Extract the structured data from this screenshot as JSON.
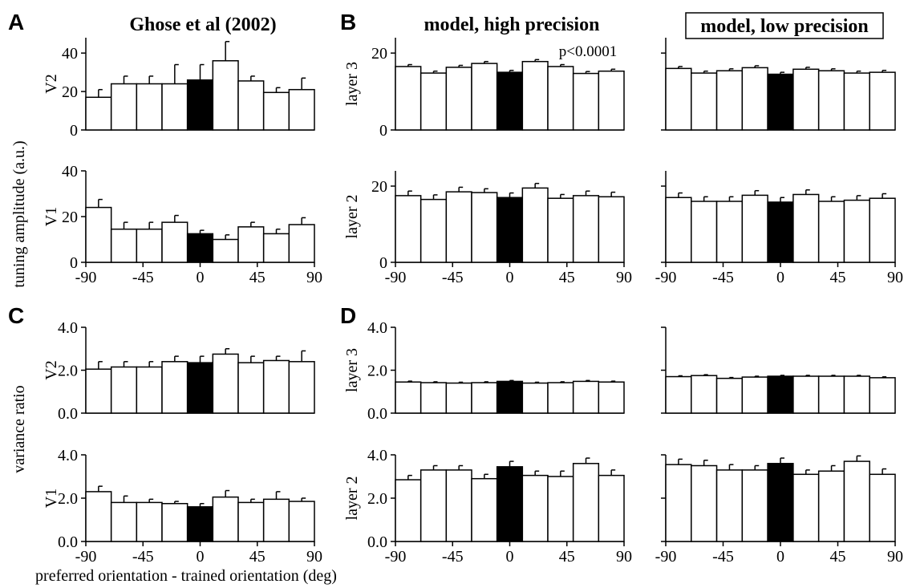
{
  "figure": {
    "panel_letters": [
      "A",
      "B",
      "C",
      "D"
    ],
    "column_titles": [
      "Ghose et al (2002)",
      "model, high precision",
      "model, low precision"
    ],
    "ylabel_top": "tuning amplitude (a.u.)",
    "ylabel_bottom": "variance ratio",
    "xlabel": "preferred orientation - trained orientation (deg)",
    "annotation": "p<0.0001"
  },
  "chart_data": [
    {
      "type": "bar",
      "id": "A-V2",
      "panel": "A",
      "row_label": "V2",
      "x": [
        -80,
        -60,
        -40,
        -20,
        0,
        20,
        40,
        60,
        80
      ],
      "values": [
        17,
        24,
        24,
        24,
        26,
        36,
        25.5,
        19.5,
        21
      ],
      "errors": [
        4,
        4,
        4,
        10,
        8,
        10,
        2.5,
        2.5,
        6
      ],
      "highlight_index": 4,
      "ylim": [
        0,
        48
      ],
      "yticks": [
        0,
        20,
        40
      ],
      "ytick_labels": [
        "0",
        "20",
        "40"
      ],
      "xlim": [
        -90,
        90
      ],
      "xticks": [],
      "xtick_labels": []
    },
    {
      "type": "bar",
      "id": "A-V1",
      "panel": "A",
      "row_label": "V1",
      "x": [
        -80,
        -60,
        -40,
        -20,
        0,
        20,
        40,
        60,
        80
      ],
      "values": [
        24,
        14.5,
        14.5,
        17.5,
        12.5,
        10,
        15.5,
        12.5,
        16.5
      ],
      "errors": [
        3.5,
        3,
        3,
        3,
        1.5,
        2,
        2,
        2,
        3
      ],
      "highlight_index": 4,
      "ylim": [
        0,
        40
      ],
      "yticks": [
        0,
        20,
        40
      ],
      "ytick_labels": [
        "0",
        "20",
        "40"
      ],
      "xlim": [
        -90,
        90
      ],
      "xticks": [
        -90,
        -45,
        0,
        45,
        90
      ],
      "xtick_labels": [
        "-90",
        "-45",
        "0",
        "45",
        "90"
      ]
    },
    {
      "type": "bar",
      "id": "B-high-layer3",
      "panel": "B",
      "row_label": "layer 3",
      "x": [
        -80,
        -60,
        -40,
        -20,
        0,
        20,
        40,
        60,
        80
      ],
      "values": [
        16.5,
        14.8,
        16.3,
        17.3,
        15,
        17.8,
        16.5,
        14.7,
        15.3
      ],
      "errors": [
        0.5,
        0.5,
        0.5,
        0.5,
        0.5,
        0.5,
        0.5,
        0.5,
        0.5
      ],
      "highlight_index": 4,
      "ylim": [
        0,
        24
      ],
      "yticks": [
        0,
        20
      ],
      "ytick_labels": [
        "0",
        "20"
      ],
      "xlim": [
        -90,
        90
      ],
      "xticks": [],
      "xtick_labels": []
    },
    {
      "type": "bar",
      "id": "B-high-layer2",
      "panel": "B",
      "row_label": "layer 2",
      "x": [
        -80,
        -60,
        -40,
        -20,
        0,
        20,
        40,
        60,
        80
      ],
      "values": [
        17.5,
        16.5,
        18.5,
        18.3,
        17,
        19.5,
        16.8,
        17.5,
        17.2
      ],
      "errors": [
        1.2,
        1.2,
        1.2,
        1,
        1.2,
        1.2,
        1,
        1.2,
        1.2
      ],
      "highlight_index": 4,
      "ylim": [
        0,
        24
      ],
      "yticks": [
        0,
        20
      ],
      "ytick_labels": [
        "0",
        "20"
      ],
      "xlim": [
        -90,
        90
      ],
      "xticks": [
        -90,
        -45,
        0,
        45,
        90
      ],
      "xtick_labels": [
        "-90",
        "-45",
        "0",
        "45",
        "90"
      ]
    },
    {
      "type": "bar",
      "id": "B-low-layer3",
      "panel": "B",
      "row_label": "",
      "x": [
        -80,
        -60,
        -40,
        -20,
        0,
        20,
        40,
        60,
        80
      ],
      "values": [
        16,
        14.8,
        15.4,
        16.2,
        14.5,
        15.8,
        15.4,
        14.8,
        15
      ],
      "errors": [
        0.5,
        0.5,
        0.5,
        0.5,
        0.5,
        0.5,
        0.5,
        0.5,
        0.5
      ],
      "highlight_index": 4,
      "ylim": [
        0,
        24
      ],
      "yticks": [
        0,
        20
      ],
      "ytick_labels": [
        "",
        ""
      ],
      "xlim": [
        -90,
        90
      ],
      "xticks": [],
      "xtick_labels": []
    },
    {
      "type": "bar",
      "id": "B-low-layer2",
      "panel": "B",
      "row_label": "",
      "x": [
        -80,
        -60,
        -40,
        -20,
        0,
        20,
        40,
        60,
        80
      ],
      "values": [
        17,
        16,
        16,
        17.6,
        15.8,
        17.8,
        16,
        16.3,
        16.8
      ],
      "errors": [
        1.2,
        1.2,
        1.2,
        1.2,
        1.2,
        1.2,
        1.2,
        1.2,
        1.2
      ],
      "highlight_index": 4,
      "ylim": [
        0,
        24
      ],
      "yticks": [
        0,
        20
      ],
      "ytick_labels": [
        "",
        ""
      ],
      "xlim": [
        -90,
        90
      ],
      "xticks": [
        -90,
        -45,
        0,
        45,
        90
      ],
      "xtick_labels": [
        "-90",
        "-45",
        "0",
        "45",
        "90"
      ]
    },
    {
      "type": "bar",
      "id": "C-V2",
      "panel": "C",
      "row_label": "V2",
      "x": [
        -80,
        -60,
        -40,
        -20,
        0,
        20,
        40,
        60,
        80
      ],
      "values": [
        2.05,
        2.15,
        2.15,
        2.4,
        2.35,
        2.75,
        2.35,
        2.45,
        2.4
      ],
      "errors": [
        0.35,
        0.25,
        0.25,
        0.25,
        0.3,
        0.25,
        0.3,
        0.2,
        0.5
      ],
      "highlight_index": 4,
      "ylim": [
        0,
        4
      ],
      "yticks": [
        0,
        2,
        4
      ],
      "ytick_labels": [
        "0.0",
        "2.0",
        "4.0"
      ],
      "xlim": [
        -90,
        90
      ],
      "xticks": [],
      "xtick_labels": []
    },
    {
      "type": "bar",
      "id": "C-V1",
      "panel": "C",
      "row_label": "V1",
      "x": [
        -80,
        -60,
        -40,
        -20,
        0,
        20,
        40,
        60,
        80
      ],
      "values": [
        2.3,
        1.8,
        1.8,
        1.75,
        1.6,
        2.05,
        1.8,
        1.95,
        1.85
      ],
      "errors": [
        0.25,
        0.3,
        0.15,
        0.1,
        0.15,
        0.3,
        0.15,
        0.35,
        0.15
      ],
      "highlight_index": 4,
      "ylim": [
        0,
        4
      ],
      "yticks": [
        0,
        2,
        4
      ],
      "ytick_labels": [
        "0.0",
        "2.0",
        "4.0"
      ],
      "xlim": [
        -90,
        90
      ],
      "xticks": [
        -90,
        -45,
        0,
        45,
        90
      ],
      "xtick_labels": [
        "-90",
        "-45",
        "0",
        "45",
        "90"
      ]
    },
    {
      "type": "bar",
      "id": "D-high-layer3",
      "panel": "D",
      "row_label": "layer 3",
      "x": [
        -80,
        -60,
        -40,
        -20,
        0,
        20,
        40,
        60,
        80
      ],
      "values": [
        1.45,
        1.42,
        1.4,
        1.42,
        1.48,
        1.4,
        1.42,
        1.48,
        1.45
      ],
      "errors": [
        0.04,
        0.04,
        0.04,
        0.04,
        0.04,
        0.04,
        0.04,
        0.04,
        0.04
      ],
      "highlight_index": 4,
      "ylim": [
        0,
        4
      ],
      "yticks": [
        0,
        2,
        4
      ],
      "ytick_labels": [
        "0.0",
        "2.0",
        "4.0"
      ],
      "xlim": [
        -90,
        90
      ],
      "xticks": [],
      "xtick_labels": []
    },
    {
      "type": "bar",
      "id": "D-high-layer2",
      "panel": "D",
      "row_label": "layer 2",
      "x": [
        -80,
        -60,
        -40,
        -20,
        0,
        20,
        40,
        60,
        80
      ],
      "values": [
        2.85,
        3.3,
        3.3,
        2.9,
        3.45,
        3.05,
        3.0,
        3.6,
        3.05
      ],
      "errors": [
        0.2,
        0.2,
        0.2,
        0.2,
        0.25,
        0.2,
        0.25,
        0.25,
        0.25
      ],
      "highlight_index": 4,
      "ylim": [
        0,
        4
      ],
      "yticks": [
        0,
        2,
        4
      ],
      "ytick_labels": [
        "0.0",
        "2.0",
        "4.0"
      ],
      "xlim": [
        -90,
        90
      ],
      "xticks": [
        -90,
        -45,
        0,
        45,
        90
      ],
      "xtick_labels": [
        "-90",
        "-45",
        "0",
        "45",
        "90"
      ]
    },
    {
      "type": "bar",
      "id": "D-low-layer3",
      "panel": "D",
      "row_label": "",
      "x": [
        -80,
        -60,
        -40,
        -20,
        0,
        20,
        40,
        60,
        80
      ],
      "values": [
        1.7,
        1.75,
        1.62,
        1.68,
        1.72,
        1.72,
        1.72,
        1.72,
        1.65
      ],
      "errors": [
        0.04,
        0.04,
        0.04,
        0.04,
        0.04,
        0.04,
        0.04,
        0.04,
        0.04
      ],
      "highlight_index": 4,
      "ylim": [
        0,
        4
      ],
      "yticks": [
        0,
        2,
        4
      ],
      "ytick_labels": [
        "",
        "",
        ""
      ],
      "xlim": [
        -90,
        90
      ],
      "xticks": [],
      "xtick_labels": []
    },
    {
      "type": "bar",
      "id": "D-low-layer2",
      "panel": "D",
      "row_label": "",
      "x": [
        -80,
        -60,
        -40,
        -20,
        0,
        20,
        40,
        60,
        80
      ],
      "values": [
        3.55,
        3.5,
        3.3,
        3.3,
        3.6,
        3.1,
        3.25,
        3.7,
        3.1
      ],
      "errors": [
        0.25,
        0.25,
        0.25,
        0.2,
        0.25,
        0.2,
        0.25,
        0.25,
        0.25
      ],
      "highlight_index": 4,
      "ylim": [
        0,
        4
      ],
      "yticks": [
        0,
        2,
        4
      ],
      "ytick_labels": [
        "",
        "",
        ""
      ],
      "xlim": [
        -90,
        90
      ],
      "xticks": [
        -90,
        -45,
        0,
        45,
        90
      ],
      "xtick_labels": [
        "-90",
        "-45",
        "0",
        "45",
        "90"
      ]
    }
  ]
}
